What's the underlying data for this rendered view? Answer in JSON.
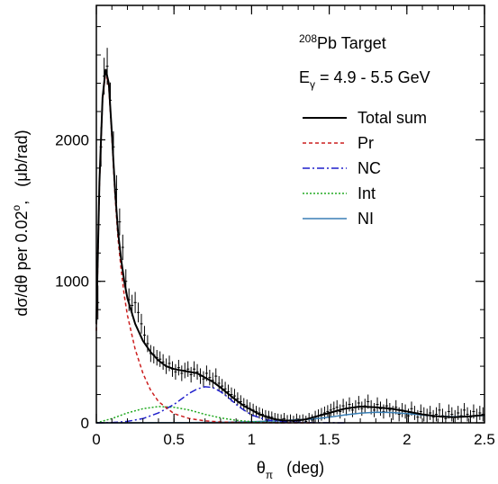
{
  "chart_data": {
    "type": "line",
    "info": {
      "target_sup": "208",
      "target_main": "Pb Target",
      "energy_main": "E",
      "energy_sub": "γ",
      "energy_rest": " = 4.9 - 5.5 GeV"
    },
    "xlabel": {
      "main": "θ",
      "sub": "π",
      "rest": "   (deg)"
    },
    "ylabel": {
      "main": "dσ/dθ per 0.02",
      "sup": "o",
      "rest": ",   (μb/rad)"
    },
    "xlim": [
      0,
      2.5
    ],
    "ylim": [
      0,
      2950
    ],
    "xticks": [
      "0",
      "0.5",
      "1",
      "1.5",
      "2",
      "2.5"
    ],
    "yticks": [
      "0",
      "1000",
      "2000"
    ],
    "legend_position": "top-right",
    "colors": {
      "total": "#000000",
      "pr": "#cc1f1f",
      "nc": "#1f1fcc",
      "int": "#22aa22",
      "ni": "#3a7fb5"
    },
    "series": [
      {
        "name": "Total sum",
        "key": "total",
        "dash": "",
        "x": [
          0,
          0.02,
          0.04,
          0.06,
          0.08,
          0.1,
          0.12,
          0.14,
          0.16,
          0.18,
          0.2,
          0.25,
          0.3,
          0.35,
          0.4,
          0.45,
          0.5,
          0.55,
          0.6,
          0.65,
          0.7,
          0.75,
          0.8,
          0.85,
          0.9,
          0.95,
          1.0,
          1.05,
          1.1,
          1.15,
          1.2,
          1.25,
          1.3,
          1.35,
          1.4,
          1.5,
          1.6,
          1.7,
          1.8,
          1.9,
          2.0,
          2.1,
          2.2,
          2.3,
          2.4,
          2.5
        ],
        "y": [
          700,
          1700,
          2300,
          2500,
          2400,
          2050,
          1650,
          1350,
          1150,
          1000,
          880,
          700,
          580,
          500,
          440,
          400,
          380,
          370,
          360,
          350,
          320,
          290,
          250,
          205,
          160,
          120,
          90,
          60,
          40,
          25,
          18,
          15,
          18,
          25,
          40,
          70,
          100,
          115,
          110,
          100,
          80,
          60,
          45,
          40,
          45,
          55
        ]
      },
      {
        "name": "Pr",
        "key": "pr",
        "dash": "4,3",
        "x": [
          0,
          0.02,
          0.04,
          0.06,
          0.08,
          0.1,
          0.12,
          0.14,
          0.16,
          0.18,
          0.2,
          0.25,
          0.3,
          0.35,
          0.4,
          0.5,
          0.6,
          0.7,
          0.8,
          0.9,
          1.0,
          1.2,
          1.4
        ],
        "y": [
          650,
          1680,
          2280,
          2480,
          2380,
          2020,
          1610,
          1300,
          1080,
          900,
          760,
          520,
          350,
          230,
          150,
          65,
          30,
          14,
          6,
          3,
          1,
          0,
          0
        ]
      },
      {
        "name": "NC",
        "key": "nc",
        "dash": "8,3,2,3",
        "x": [
          0,
          0.1,
          0.2,
          0.3,
          0.4,
          0.5,
          0.55,
          0.6,
          0.65,
          0.7,
          0.75,
          0.8,
          0.85,
          0.9,
          0.95,
          1.0,
          1.1,
          1.2,
          1.3,
          1.4,
          1.6
        ],
        "y": [
          0,
          2,
          10,
          30,
          70,
          130,
          170,
          210,
          240,
          255,
          250,
          220,
          180,
          130,
          90,
          55,
          20,
          8,
          3,
          1,
          0
        ]
      },
      {
        "name": "Int",
        "key": "int",
        "dash": "2,2",
        "x": [
          0,
          0.1,
          0.2,
          0.3,
          0.4,
          0.5,
          0.6,
          0.7,
          0.8,
          0.9,
          1.0,
          1.1,
          1.2
        ],
        "y": [
          0,
          30,
          70,
          100,
          115,
          110,
          90,
          60,
          35,
          18,
          8,
          3,
          0
        ]
      },
      {
        "name": "NI",
        "key": "ni",
        "dash": "",
        "x": [
          0,
          0.2,
          0.4,
          0.6,
          0.8,
          1.0,
          1.2,
          1.4,
          1.5,
          1.6,
          1.7,
          1.8,
          1.9,
          2.0,
          2.1,
          2.2,
          2.3,
          2.4,
          2.5
        ],
        "y": [
          0,
          0,
          1,
          2,
          4,
          8,
          15,
          28,
          40,
          55,
          68,
          75,
          73,
          65,
          55,
          47,
          43,
          46,
          52
        ]
      }
    ],
    "measured": {
      "x": [
        0.01,
        0.03,
        0.05,
        0.07,
        0.09,
        0.11,
        0.13,
        0.15,
        0.17,
        0.19,
        0.21,
        0.23,
        0.25,
        0.27,
        0.29,
        0.31,
        0.33,
        0.35,
        0.37,
        0.39,
        0.41,
        0.43,
        0.45,
        0.47,
        0.49,
        0.51,
        0.53,
        0.55,
        0.57,
        0.59,
        0.61,
        0.63,
        0.65,
        0.67,
        0.69,
        0.71,
        0.73,
        0.75,
        0.77,
        0.79,
        0.81,
        0.83,
        0.85,
        0.87,
        0.89,
        0.91,
        0.93,
        0.95,
        0.97,
        0.99,
        1.01,
        1.03,
        1.05,
        1.07,
        1.09,
        1.11,
        1.13,
        1.15,
        1.17,
        1.19,
        1.21,
        1.23,
        1.25,
        1.27,
        1.29,
        1.31,
        1.33,
        1.35,
        1.37,
        1.39,
        1.41,
        1.43,
        1.45,
        1.47,
        1.49,
        1.51,
        1.53,
        1.55,
        1.57,
        1.59,
        1.61,
        1.63,
        1.65,
        1.67,
        1.69,
        1.71,
        1.73,
        1.75,
        1.77,
        1.79,
        1.81,
        1.83,
        1.85,
        1.87,
        1.89,
        1.91,
        1.93,
        1.95,
        1.97,
        1.99,
        2.01,
        2.03,
        2.05,
        2.07,
        2.09,
        2.11,
        2.13,
        2.15,
        2.17,
        2.19,
        2.21,
        2.23,
        2.25,
        2.27,
        2.29,
        2.31,
        2.33,
        2.35,
        2.37,
        2.39,
        2.41,
        2.43,
        2.45,
        2.47,
        2.49
      ],
      "y": [
        850,
        1950,
        2450,
        2520,
        2280,
        1950,
        1650,
        1420,
        1240,
        1000,
        870,
        830,
        850,
        780,
        700,
        620,
        560,
        490,
        480,
        460,
        450,
        430,
        400,
        420,
        380,
        360,
        390,
        350,
        370,
        380,
        340,
        380,
        360,
        330,
        310,
        350,
        320,
        300,
        330,
        280,
        260,
        240,
        220,
        200,
        190,
        170,
        150,
        130,
        120,
        100,
        90,
        80,
        70,
        60,
        50,
        45,
        40,
        30,
        25,
        20,
        30,
        15,
        20,
        10,
        25,
        15,
        20,
        10,
        30,
        20,
        40,
        50,
        60,
        70,
        80,
        90,
        100,
        110,
        80,
        120,
        100,
        130,
        90,
        110,
        140,
        100,
        120,
        150,
        110,
        90,
        130,
        100,
        80,
        120,
        90,
        70,
        110,
        60,
        90,
        80,
        50,
        100,
        70,
        40,
        80,
        60,
        50,
        70,
        40,
        60,
        90,
        50,
        30,
        80,
        60,
        40,
        70,
        50,
        90,
        60,
        40,
        80,
        50,
        70,
        60
      ],
      "err": [
        120,
        140,
        130,
        130,
        125,
        110,
        100,
        95,
        90,
        85,
        80,
        75,
        75,
        70,
        70,
        65,
        60,
        60,
        60,
        55,
        55,
        55,
        55,
        55,
        55,
        55,
        55,
        55,
        55,
        55,
        55,
        55,
        55,
        55,
        55,
        55,
        55,
        55,
        55,
        50,
        50,
        50,
        50,
        50,
        50,
        45,
        45,
        45,
        45,
        45,
        45,
        40,
        40,
        40,
        40,
        40,
        40,
        40,
        40,
        40,
        40,
        40,
        40,
        40,
        40,
        40,
        40,
        40,
        40,
        40,
        45,
        45,
        45,
        45,
        45,
        45,
        50,
        50,
        50,
        50,
        50,
        50,
        50,
        50,
        50,
        50,
        50,
        50,
        50,
        50,
        50,
        50,
        50,
        50,
        50,
        50,
        50,
        50,
        50,
        50,
        50,
        50,
        50,
        50,
        50,
        50,
        50,
        50,
        50,
        50,
        50,
        50,
        50,
        50,
        50,
        50,
        50,
        50,
        50,
        50,
        50,
        50,
        50,
        50,
        50
      ]
    }
  }
}
